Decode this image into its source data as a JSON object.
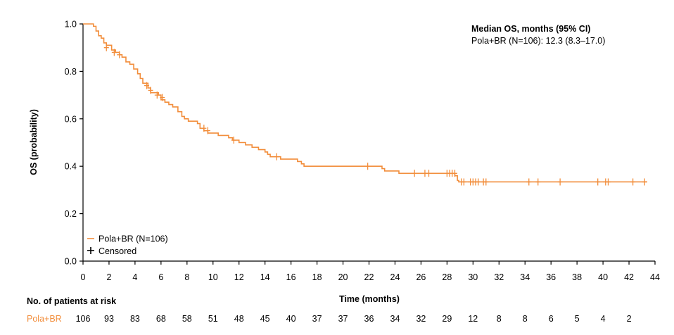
{
  "chart_data": {
    "type": "line",
    "subtype": "kaplan-meier",
    "ylabel": "OS (probability)",
    "xlabel": "Time (months)",
    "xlim": [
      0,
      44
    ],
    "ylim": [
      0,
      1.0
    ],
    "x_ticks": [
      "0",
      "2",
      "4",
      "6",
      "8",
      "10",
      "12",
      "14",
      "16",
      "18",
      "20",
      "22",
      "24",
      "26",
      "28",
      "30",
      "32",
      "34",
      "36",
      "38",
      "40",
      "42",
      "44"
    ],
    "y_ticks": [
      "0.0",
      "0.2",
      "0.4",
      "0.6",
      "0.8",
      "1.0"
    ],
    "annotation": {
      "title": "Median OS, months (95% CI)",
      "line": "Pola+BR (N=106): 12.3 (8.3–17.0)"
    },
    "legend": {
      "position": "bottom-left",
      "series_label": "Pola+BR (N=106)",
      "censored_label": "Censored"
    },
    "colors": {
      "series": "#f28e3c",
      "axis": "#000000"
    },
    "series": [
      {
        "name": "Pola+BR",
        "step_points": [
          [
            0,
            1.0
          ],
          [
            0.8,
            0.99
          ],
          [
            1.0,
            0.97
          ],
          [
            1.2,
            0.95
          ],
          [
            1.4,
            0.94
          ],
          [
            1.6,
            0.92
          ],
          [
            1.8,
            0.91
          ],
          [
            2.2,
            0.89
          ],
          [
            2.5,
            0.88
          ],
          [
            2.8,
            0.87
          ],
          [
            3.0,
            0.86
          ],
          [
            3.3,
            0.84
          ],
          [
            3.6,
            0.83
          ],
          [
            3.9,
            0.81
          ],
          [
            4.2,
            0.79
          ],
          [
            4.4,
            0.77
          ],
          [
            4.6,
            0.75
          ],
          [
            5.0,
            0.73
          ],
          [
            5.2,
            0.71
          ],
          [
            5.8,
            0.7
          ],
          [
            6.0,
            0.68
          ],
          [
            6.3,
            0.67
          ],
          [
            6.6,
            0.66
          ],
          [
            6.9,
            0.65
          ],
          [
            7.3,
            0.63
          ],
          [
            7.6,
            0.61
          ],
          [
            7.8,
            0.6
          ],
          [
            8.1,
            0.59
          ],
          [
            8.8,
            0.58
          ],
          [
            9.0,
            0.56
          ],
          [
            9.3,
            0.55
          ],
          [
            9.6,
            0.54
          ],
          [
            10.4,
            0.53
          ],
          [
            11.2,
            0.52
          ],
          [
            11.5,
            0.51
          ],
          [
            12.0,
            0.5
          ],
          [
            12.5,
            0.49
          ],
          [
            13.0,
            0.48
          ],
          [
            13.5,
            0.47
          ],
          [
            14.0,
            0.46
          ],
          [
            14.2,
            0.45
          ],
          [
            14.4,
            0.44
          ],
          [
            15.2,
            0.43
          ],
          [
            16.5,
            0.42
          ],
          [
            16.8,
            0.41
          ],
          [
            17.0,
            0.4
          ],
          [
            23.0,
            0.39
          ],
          [
            23.2,
            0.38
          ],
          [
            24.3,
            0.37
          ],
          [
            26.5,
            0.37
          ],
          [
            28.6,
            0.36
          ],
          [
            28.8,
            0.34
          ],
          [
            28.9,
            0.334
          ],
          [
            43.4,
            0.334
          ]
        ],
        "censored": [
          [
            1.8,
            0.9
          ],
          [
            2.4,
            0.88
          ],
          [
            2.8,
            0.87
          ],
          [
            4.9,
            0.74
          ],
          [
            5.2,
            0.72
          ],
          [
            5.7,
            0.7
          ],
          [
            6.1,
            0.69
          ],
          [
            9.3,
            0.56
          ],
          [
            9.6,
            0.55
          ],
          [
            11.6,
            0.51
          ],
          [
            14.9,
            0.44
          ],
          [
            21.9,
            0.4
          ],
          [
            25.5,
            0.37
          ],
          [
            26.3,
            0.37
          ],
          [
            26.6,
            0.37
          ],
          [
            28.0,
            0.37
          ],
          [
            28.2,
            0.37
          ],
          [
            28.4,
            0.37
          ],
          [
            28.6,
            0.37
          ],
          [
            29.1,
            0.334
          ],
          [
            29.3,
            0.334
          ],
          [
            29.8,
            0.334
          ],
          [
            30.0,
            0.334
          ],
          [
            30.2,
            0.334
          ],
          [
            30.4,
            0.334
          ],
          [
            30.8,
            0.334
          ],
          [
            31.0,
            0.334
          ],
          [
            34.3,
            0.334
          ],
          [
            35.0,
            0.334
          ],
          [
            36.7,
            0.334
          ],
          [
            39.6,
            0.334
          ],
          [
            40.2,
            0.334
          ],
          [
            40.4,
            0.334
          ],
          [
            42.3,
            0.334
          ],
          [
            43.2,
            0.334
          ]
        ]
      }
    ],
    "at_risk": {
      "title": "No. of patients at risk",
      "label": "Pola+BR",
      "values": [
        "106",
        "93",
        "83",
        "68",
        "58",
        "51",
        "48",
        "45",
        "40",
        "37",
        "37",
        "36",
        "34",
        "32",
        "29",
        "12",
        "8",
        "8",
        "6",
        "5",
        "4",
        "2"
      ]
    }
  }
}
